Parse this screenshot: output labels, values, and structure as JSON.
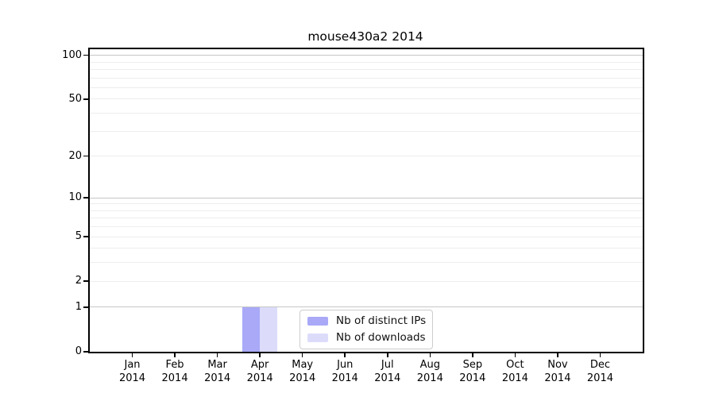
{
  "title": "mouse430a2 2014",
  "chart_data": {
    "type": "bar",
    "title": "mouse430a2 2014",
    "categories": [
      {
        "month": "Jan",
        "year": "2014"
      },
      {
        "month": "Feb",
        "year": "2014"
      },
      {
        "month": "Mar",
        "year": "2014"
      },
      {
        "month": "Apr",
        "year": "2014"
      },
      {
        "month": "May",
        "year": "2014"
      },
      {
        "month": "Jun",
        "year": "2014"
      },
      {
        "month": "Jul",
        "year": "2014"
      },
      {
        "month": "Aug",
        "year": "2014"
      },
      {
        "month": "Sep",
        "year": "2014"
      },
      {
        "month": "Oct",
        "year": "2014"
      },
      {
        "month": "Nov",
        "year": "2014"
      },
      {
        "month": "Dec",
        "year": "2014"
      }
    ],
    "series": [
      {
        "name": "Nb of distinct IPs",
        "color": "#a9a9f8",
        "values": [
          0,
          0,
          0,
          1,
          0,
          0,
          0,
          0,
          0,
          0,
          0,
          0
        ]
      },
      {
        "name": "Nb of downloads",
        "color": "#dcdcfa",
        "values": [
          0,
          0,
          0,
          1,
          0,
          0,
          0,
          0,
          0,
          0,
          0,
          0
        ]
      }
    ],
    "xlabel": "",
    "ylabel": "",
    "yscale": "log1p",
    "ylim": [
      0,
      110
    ],
    "yticks": [
      0,
      1,
      2,
      5,
      10,
      20,
      50,
      100
    ],
    "major_gridlines": [
      1,
      10,
      100
    ],
    "minor_gridlines": [
      2,
      3,
      4,
      5,
      6,
      7,
      8,
      9,
      20,
      30,
      40,
      50,
      60,
      70,
      80,
      90
    ],
    "grid": "horizontal",
    "legend_position": "lower center"
  }
}
